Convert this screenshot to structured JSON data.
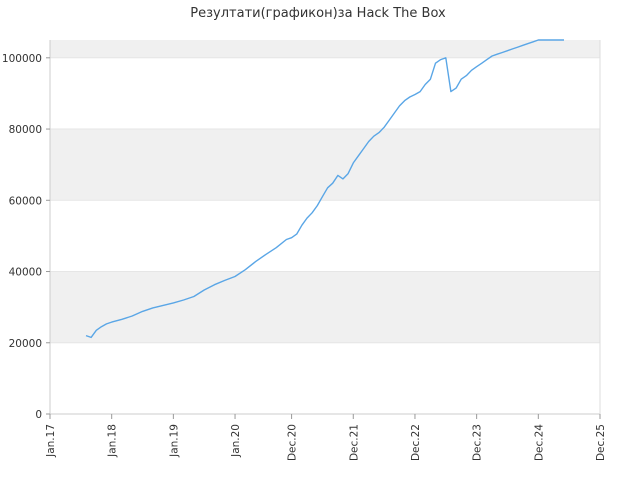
{
  "chart_data": {
    "type": "line",
    "title": "Резултати(графикон)за Hack The Box",
    "xlabel": "",
    "ylabel": "",
    "x_tick_labels": [
      "Jan.17",
      "Jan.18",
      "Jan.19",
      "Jan.20",
      "Dec.20",
      "Dec.21",
      "Dec.22",
      "Dec.23",
      "Dec.24",
      "Dec.25"
    ],
    "x_ticks": [
      "2017-01",
      "2018-01",
      "2019-01",
      "2020-01",
      "2020-12",
      "2021-12",
      "2022-12",
      "2023-12",
      "2024-12",
      "2025-12"
    ],
    "y_tick_labels": [
      "0",
      "20000",
      "40000",
      "60000",
      "80000",
      "100000"
    ],
    "y_ticks": [
      0,
      20000,
      40000,
      60000,
      80000,
      100000
    ],
    "ylim": [
      0,
      105000
    ],
    "grid": "alternating horizontal bands",
    "line_color": "#5aa6e6",
    "series": [
      {
        "x": [
          "2017-08",
          "2017-09",
          "2017-10",
          "2017-11",
          "2017-12",
          "2018-01",
          "2018-03",
          "2018-05",
          "2018-07",
          "2018-09",
          "2018-11",
          "2019-01",
          "2019-03",
          "2019-05",
          "2019-07",
          "2019-09",
          "2019-11",
          "2020-01",
          "2020-03",
          "2020-05",
          "2020-07",
          "2020-09",
          "2020-11",
          "2020-12",
          "2021-01",
          "2021-02",
          "2021-03",
          "2021-04",
          "2021-05",
          "2021-06",
          "2021-07",
          "2021-08",
          "2021-09",
          "2021-10",
          "2021-11",
          "2021-12",
          "2022-01",
          "2022-02",
          "2022-03",
          "2022-04",
          "2022-05",
          "2022-06",
          "2022-07",
          "2022-08",
          "2022-09",
          "2022-10",
          "2022-11",
          "2022-12",
          "2023-01",
          "2023-02",
          "2023-03",
          "2023-04",
          "2023-05",
          "2023-06",
          "2023-07",
          "2023-08",
          "2023-09",
          "2023-10",
          "2023-11",
          "2023-12",
          "2024-01",
          "2024-02",
          "2024-03",
          "2024-04",
          "2024-05",
          "2024-06",
          "2024-07",
          "2024-08",
          "2024-09",
          "2024-10",
          "2024-11",
          "2024-12",
          "2025-01",
          "2025-02",
          "2025-03",
          "2025-04",
          "2025-05"
        ],
        "values": [
          22000,
          21500,
          23500,
          24500,
          25300,
          25800,
          26600,
          27500,
          28800,
          29800,
          30500,
          31200,
          32000,
          33000,
          34800,
          36300,
          37500,
          38600,
          40500,
          42800,
          44800,
          46700,
          49000,
          49500,
          50500,
          53000,
          55000,
          56500,
          58500,
          61000,
          63500,
          64800,
          67000,
          66000,
          67500,
          70500,
          72500,
          74500,
          76500,
          78000,
          79000,
          80500,
          82500,
          84500,
          86500,
          88000,
          89000,
          89700,
          90500,
          92500,
          94000,
          98500,
          99500,
          100000,
          90500,
          91500,
          94000,
          95000,
          96500,
          97500,
          98500,
          99500,
          100500,
          101000,
          101500,
          102000,
          102500,
          103000,
          103500,
          104000,
          104500,
          105000,
          105000,
          105000,
          105000,
          105000,
          105000
        ]
      }
    ]
  }
}
